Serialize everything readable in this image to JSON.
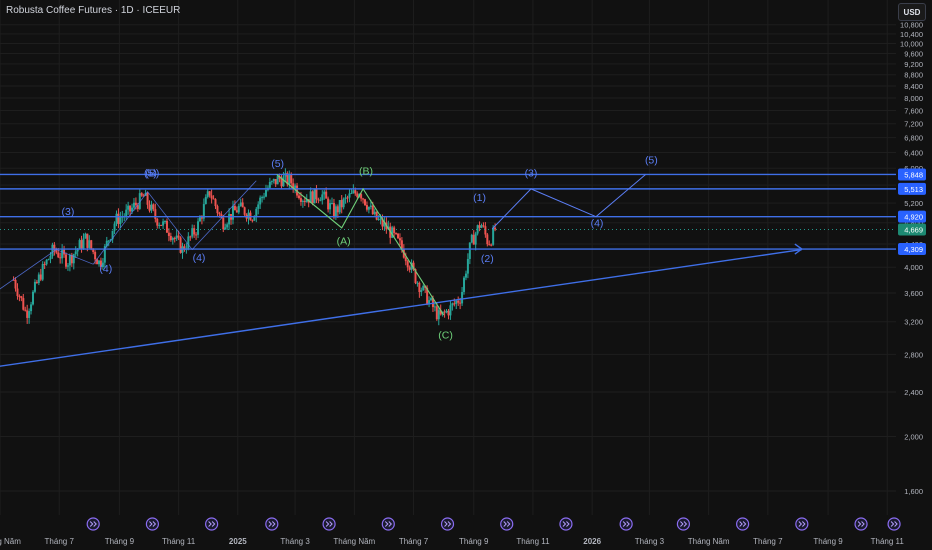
{
  "header": {
    "title": "Robusta Coffee Futures · 1D · ICEEUR",
    "currency": "USD"
  },
  "colors": {
    "background": "#111111",
    "grid": "#1e1e1e",
    "up": "#26a69a",
    "down": "#ef5350",
    "drawing": "#3f6fe8",
    "wave_blue": "#5b7ef5",
    "wave_green": "#6fd07a",
    "axis_text": "#b2b5be",
    "price_tag": "#2962ff",
    "last_tag": "#1d8a73"
  },
  "chart_data": {
    "type": "candlestick",
    "title": "Robusta Coffee Futures · 1D · ICEEUR",
    "y_ticks": [
      1600,
      2000,
      2400,
      2800,
      3200,
      3600,
      4000,
      4400,
      4800,
      5200,
      5600,
      6000,
      6400,
      6800,
      7200,
      7600,
      8000,
      8400,
      8800,
      9200,
      9600,
      10000,
      10400,
      10800
    ],
    "y_tick_labels": [
      "1,600",
      "2,000",
      "2,400",
      "2,800",
      "3,200",
      "3,600",
      "4,000",
      "4,400",
      "4,800",
      "5,200",
      "5,600",
      "6,000",
      "6,400",
      "6,800",
      "7,200",
      "7,600",
      "8,000",
      "8,400",
      "8,800",
      "9,200",
      "9,600",
      "10,000",
      "10,400",
      "10,800"
    ],
    "ylim": [
      1450,
      11100
    ],
    "x_ticks": [
      {
        "label": "Tháng Năm",
        "date": "2024-05"
      },
      {
        "label": "Tháng 7",
        "date": "2024-07"
      },
      {
        "label": "Tháng 9",
        "date": "2024-09"
      },
      {
        "label": "Tháng 11",
        "date": "2024-11"
      },
      {
        "label": "2025",
        "date": "2025-01"
      },
      {
        "label": "Tháng 3",
        "date": "2025-03"
      },
      {
        "label": "Tháng Năm",
        "date": "2025-05"
      },
      {
        "label": "Tháng 7",
        "date": "2025-07"
      },
      {
        "label": "Tháng 9",
        "date": "2025-09"
      },
      {
        "label": "Tháng 11",
        "date": "2025-11"
      },
      {
        "label": "2026",
        "date": "2026-01"
      },
      {
        "label": "Tháng 3",
        "date": "2026-03"
      },
      {
        "label": "Tháng Năm",
        "date": "2026-05"
      },
      {
        "label": "Tháng 7",
        "date": "2026-07"
      },
      {
        "label": "Tháng 9",
        "date": "2026-09"
      },
      {
        "label": "Tháng 11",
        "date": "2026-11"
      }
    ],
    "xlim": [
      "2024-05-01",
      "2026-11-10"
    ],
    "price_path": [
      [
        "2024-05-15",
        3800
      ],
      [
        "2024-05-28",
        3300
      ],
      [
        "2024-06-12",
        3900
      ],
      [
        "2024-06-25",
        4300
      ],
      [
        "2024-07-10",
        4100
      ],
      [
        "2024-07-28",
        4500
      ],
      [
        "2024-08-12",
        4050
      ],
      [
        "2024-08-28",
        4850
      ],
      [
        "2024-09-10",
        5000
      ],
      [
        "2024-09-26",
        5350
      ],
      [
        "2024-10-08",
        4900
      ],
      [
        "2024-10-22",
        4650
      ],
      [
        "2024-11-05",
        4300
      ],
      [
        "2024-11-20",
        4700
      ],
      [
        "2024-12-03",
        5450
      ],
      [
        "2024-12-16",
        4800
      ],
      [
        "2025-01-02",
        5100
      ],
      [
        "2025-01-16",
        4950
      ],
      [
        "2025-01-30",
        5500
      ],
      [
        "2025-02-12",
        5750
      ],
      [
        "2025-02-24",
        5700
      ],
      [
        "2025-03-10",
        5300
      ],
      [
        "2025-03-28",
        5400
      ],
      [
        "2025-04-10",
        5000
      ],
      [
        "2025-04-24",
        5300
      ],
      [
        "2025-05-06",
        5480
      ],
      [
        "2025-05-22",
        4900
      ],
      [
        "2025-06-06",
        4650
      ],
      [
        "2025-06-20",
        4300
      ],
      [
        "2025-07-04",
        3800
      ],
      [
        "2025-07-16",
        3500
      ],
      [
        "2025-07-28",
        3250
      ],
      [
        "2025-08-08",
        3380
      ],
      [
        "2025-08-19",
        3550
      ],
      [
        "2025-08-29",
        4400
      ],
      [
        "2025-09-08",
        4800
      ],
      [
        "2025-09-16",
        4420
      ],
      [
        "2025-09-24",
        4669
      ]
    ],
    "last_price": 4669,
    "horizontal_levels": [
      {
        "price": 5848,
        "label": "5,848"
      },
      {
        "price": 5513,
        "label": "5,513"
      },
      {
        "price": 4920,
        "label": "4,920"
      },
      {
        "price": 4309,
        "label": "4,309"
      }
    ],
    "last_price_label": "4,669",
    "extra_level": {
      "price": 4669,
      "style": "dotted"
    },
    "trendline": {
      "from": [
        "2024-04-20",
        2650
      ],
      "to": [
        "2026-08-05",
        4300
      ]
    },
    "corrective_wave": [
      [
        "2025-02-10",
        5848
      ],
      [
        "2025-04-18",
        4700
      ],
      [
        "2025-05-10",
        5513
      ],
      [
        "2025-08-01",
        3290
      ]
    ],
    "impulse_wave_past": [
      [
        "2024-04-25",
        3600
      ],
      [
        "2024-06-28",
        4300
      ],
      [
        "2024-08-05",
        4050
      ],
      [
        "2024-09-30",
        5450
      ],
      [
        "2024-11-15",
        4300
      ],
      [
        "2025-01-20",
        5700
      ]
    ],
    "projection_path": [
      [
        "2025-09-20",
        4680
      ],
      [
        "2025-10-30",
        5513
      ],
      [
        "2026-01-05",
        4920
      ],
      [
        "2026-02-25",
        5848
      ]
    ],
    "wave_labels": [
      {
        "text": "(3)",
        "date": "2024-07-10",
        "price": 4950,
        "color": "blue"
      },
      {
        "text": "(4)",
        "date": "2024-08-18",
        "price": 3920,
        "color": "blue"
      },
      {
        "text": "(5)",
        "date": "2024-10-03",
        "price": 5800,
        "color": "blue"
      },
      {
        "text": "(B)",
        "date": "2024-10-05",
        "price": 5800,
        "color": "blue"
      },
      {
        "text": "(4)",
        "date": "2024-11-22",
        "price": 4100,
        "color": "blue"
      },
      {
        "text": "(5)",
        "date": "2025-02-11",
        "price": 6030,
        "color": "blue"
      },
      {
        "text": "(B)",
        "date": "2025-05-13",
        "price": 5850,
        "color": "green"
      },
      {
        "text": "(A)",
        "date": "2025-04-20",
        "price": 4390,
        "color": "green"
      },
      {
        "text": "(C)",
        "date": "2025-08-03",
        "price": 2990,
        "color": "green"
      },
      {
        "text": "(1)",
        "date": "2025-09-07",
        "price": 5250,
        "color": "blue"
      },
      {
        "text": "(2)",
        "date": "2025-09-15",
        "price": 4090,
        "color": "blue"
      },
      {
        "text": "(3)",
        "date": "2025-10-30",
        "price": 5800,
        "color": "blue"
      },
      {
        "text": "(4)",
        "date": "2026-01-06",
        "price": 4730,
        "color": "blue"
      },
      {
        "text": "(5)",
        "date": "2026-03-03",
        "price": 6120,
        "color": "blue"
      }
    ],
    "arrow_end_date": "2026-08-05",
    "event_marker_dates": [
      "2024-08-05",
      "2024-10-05",
      "2024-12-05",
      "2025-02-05",
      "2025-04-05",
      "2025-06-05",
      "2025-08-05",
      "2025-10-05",
      "2025-12-05",
      "2026-02-05",
      "2026-04-05",
      "2026-06-05",
      "2026-08-05",
      "2026-10-05",
      "2026-11-08"
    ]
  }
}
